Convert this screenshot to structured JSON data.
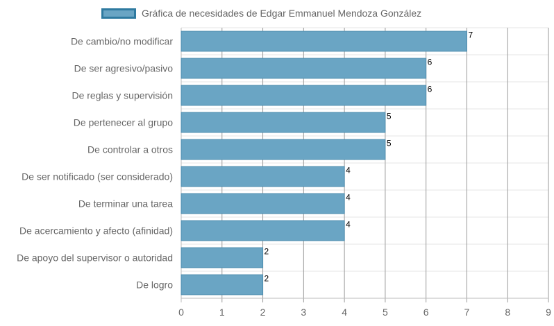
{
  "chart_data": {
    "type": "bar",
    "orientation": "horizontal",
    "legend": {
      "label": "Gráfica de necesidades de Edgar Emmanuel Mendoza González",
      "position": "top"
    },
    "categories": [
      "De cambio/no modificar",
      "De ser agresivo/pasivo",
      "De reglas y supervisión",
      "De pertenecer al grupo",
      "De controlar a otros",
      "De ser notificado (ser considerado)",
      "De terminar una tarea",
      "De acercamiento y afecto (afinidad)",
      "De apoyo del supervisor o autoridad",
      "De logro"
    ],
    "values": [
      7,
      6,
      6,
      5,
      5,
      4,
      4,
      4,
      2,
      2
    ],
    "xlim": [
      0,
      9
    ],
    "xticks": [
      "0",
      "1",
      "2",
      "3",
      "4",
      "5",
      "6",
      "7",
      "8",
      "9"
    ],
    "grid": true,
    "colors": {
      "bar_fill": "#6aa5c4",
      "bar_stroke": "#4d8db0",
      "grid": "#e6e6e6",
      "grid_dark": "#999999"
    }
  }
}
